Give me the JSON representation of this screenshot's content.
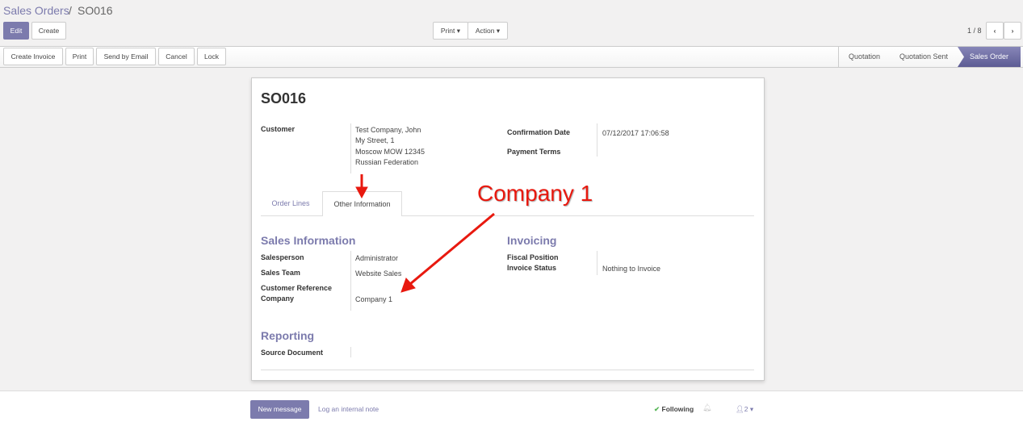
{
  "breadcrumb": {
    "parent": "Sales Orders",
    "separator": "/",
    "current": "SO016"
  },
  "toolbar": {
    "edit": "Edit",
    "create": "Create",
    "print": "Print",
    "action": "Action",
    "pager": "1 / 8"
  },
  "statusbar": {
    "buttons": [
      "Create Invoice",
      "Print",
      "Send by Email",
      "Cancel",
      "Lock"
    ],
    "stages": [
      "Quotation",
      "Quotation Sent",
      "Sales Order"
    ],
    "active_stage": "Sales Order"
  },
  "sheet": {
    "title": "SO016",
    "customer_label": "Customer",
    "customer": {
      "name": "Test Company, John",
      "street": "My Street, 1",
      "city": "Moscow MOW 12345",
      "country": "Russian Federation"
    },
    "confirmation_date_label": "Confirmation Date",
    "confirmation_date": "07/12/2017 17:06:58",
    "payment_terms_label": "Payment Terms",
    "tabs": [
      "Order Lines",
      "Other Information"
    ],
    "sales_info": {
      "title": "Sales Information",
      "salesperson_label": "Salesperson",
      "salesperson": "Administrator",
      "team_label": "Sales Team",
      "team": "Website Sales",
      "ref_label": "Customer Reference",
      "company_label": "Company",
      "company": "Company 1"
    },
    "invoicing": {
      "title": "Invoicing",
      "fiscal_label": "Fiscal Position",
      "status_label": "Invoice Status",
      "status": "Nothing to Invoice"
    },
    "reporting": {
      "title": "Reporting",
      "source_label": "Source Document"
    }
  },
  "annotation": {
    "text": "Company 1",
    "color": "#e8190f"
  },
  "chatter": {
    "new_message": "New message",
    "log_note": "Log an internal note",
    "following": "Following",
    "followers": "2"
  },
  "colors": {
    "accent": "#7c7bad"
  }
}
